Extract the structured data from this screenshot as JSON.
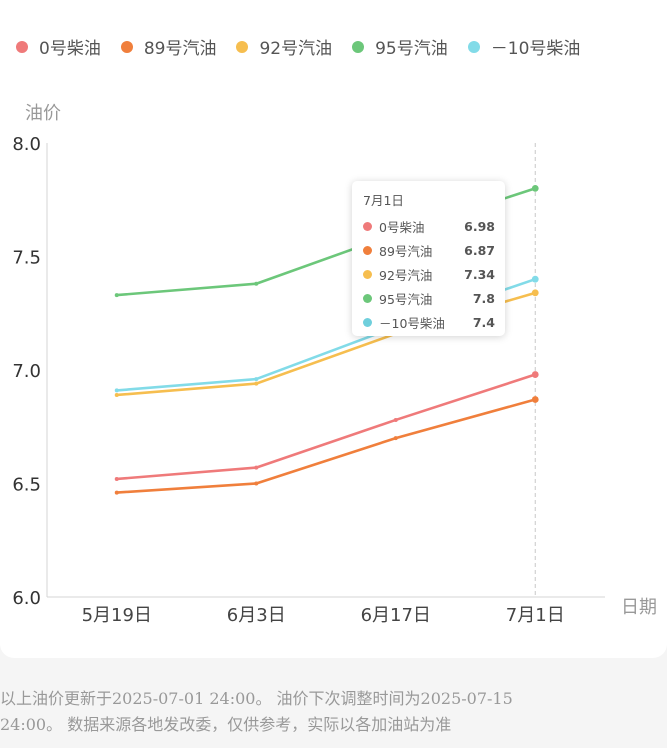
{
  "chart_data": {
    "type": "line",
    "title": "",
    "ylabel": "油价",
    "xlabel": "日期",
    "categories": [
      "5月19日",
      "6月3日",
      "6月17日",
      "7月1日"
    ],
    "y_ticks": [
      "6.0",
      "6.5",
      "7.0",
      "7.5",
      "8.0"
    ],
    "ylim": [
      6.0,
      8.0
    ],
    "grid": false,
    "legend_position": "top",
    "series": [
      {
        "name": "0号柴油",
        "color": "#ef7a7a",
        "values": [
          6.52,
          6.57,
          6.78,
          6.98
        ]
      },
      {
        "name": "89号汽油",
        "color": "#f07f3c",
        "values": [
          6.46,
          6.5,
          6.7,
          6.87
        ]
      },
      {
        "name": "92号汽油",
        "color": "#f6be4f",
        "values": [
          6.89,
          6.94,
          7.16,
          7.34
        ]
      },
      {
        "name": "95号汽油",
        "color": "#6cc77a",
        "values": [
          7.33,
          7.38,
          7.6,
          7.8
        ]
      },
      {
        "name": "－10号柴油",
        "color": "#82dbe8",
        "values": [
          6.91,
          6.96,
          7.19,
          7.4
        ]
      }
    ]
  },
  "tooltip": {
    "title": "7月1日",
    "rows": [
      {
        "name": "0号柴油",
        "value": "6.98",
        "color": "#ef7a7a"
      },
      {
        "name": "89号汽油",
        "value": "6.87",
        "color": "#f07f3c"
      },
      {
        "name": "92号汽油",
        "value": "7.34",
        "color": "#f6be4f"
      },
      {
        "name": "95号汽油",
        "value": "7.8",
        "color": "#6cc77a"
      },
      {
        "name": "－10号柴油",
        "value": "7.4",
        "color": "#6fcfdc"
      }
    ]
  },
  "footnote": "以上油价更新于2025-07-01 24:00。 油价下次调整时间为2025-07-15\n24:00。 数据来源各地发改委，仅供参考，实际以各加油站为准"
}
